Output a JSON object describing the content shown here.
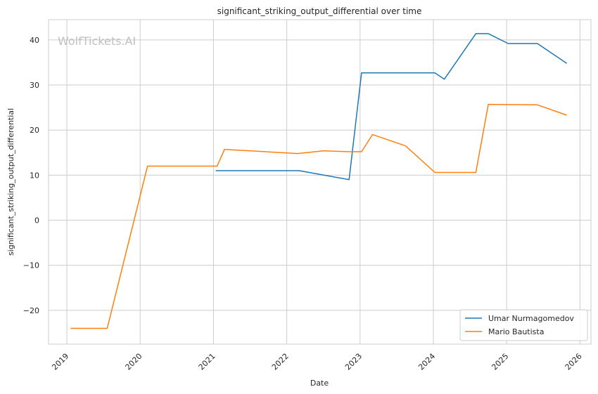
{
  "chart_data": {
    "type": "line",
    "title": "significant_striking_output_differential over time",
    "xlabel": "Date",
    "ylabel": "significant_striking_output_differential",
    "watermark": "WolfTickets.AI",
    "x_ticks": [
      "2019",
      "2020",
      "2021",
      "2022",
      "2023",
      "2024",
      "2025",
      "2026"
    ],
    "y_ticks": [
      "−20",
      "−10",
      "0",
      "10",
      "20",
      "30",
      "40"
    ],
    "xlim": [
      2018.75,
      2026.15
    ],
    "ylim": [
      -27.5,
      44.5
    ],
    "grid": true,
    "legend_position": "lower-right",
    "series": [
      {
        "name": "Umar Nurmagomedov",
        "color": "#1f77b4",
        "x": [
          2021.03,
          2022.17,
          2022.85,
          2023.02,
          2024.02,
          2024.15,
          2024.58,
          2024.75,
          2025.02,
          2025.42,
          2025.82
        ],
        "y": [
          11.0,
          11.0,
          9.0,
          32.7,
          32.7,
          31.3,
          41.4,
          41.4,
          39.2,
          39.2,
          34.8
        ]
      },
      {
        "name": "Mario Bautista",
        "color": "#ff7f0e",
        "x": [
          2019.05,
          2019.55,
          2020.1,
          2021.05,
          2021.15,
          2022.15,
          2022.5,
          2022.85,
          2023.02,
          2023.17,
          2023.62,
          2024.02,
          2024.58,
          2024.75,
          2025.42,
          2025.82
        ],
        "y": [
          -24.0,
          -24.0,
          12.0,
          12.0,
          15.7,
          14.8,
          15.4,
          15.2,
          15.2,
          19.0,
          16.5,
          10.6,
          10.6,
          25.7,
          25.6,
          23.3
        ]
      }
    ]
  }
}
